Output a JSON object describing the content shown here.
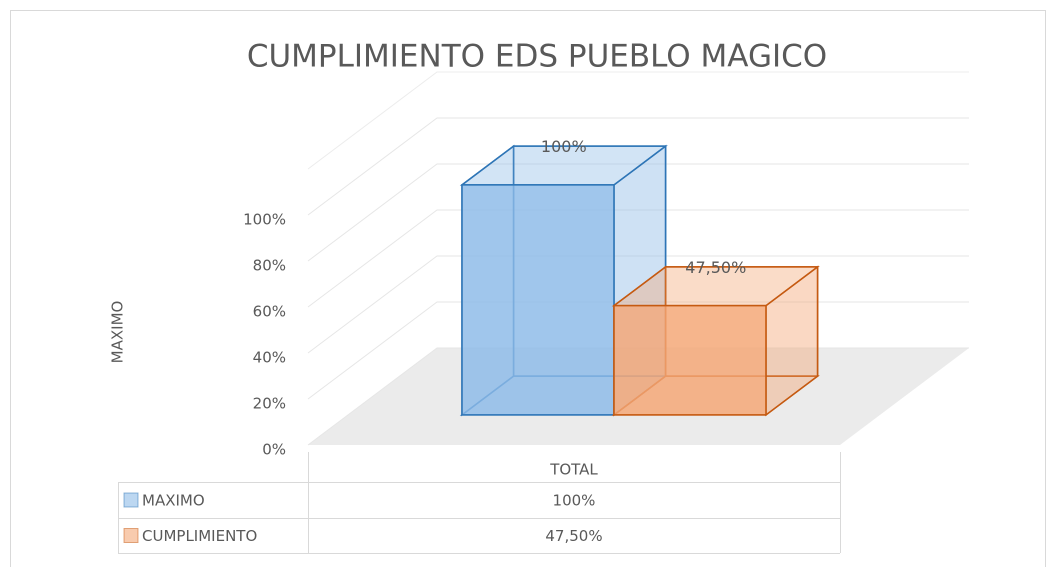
{
  "chart_data": {
    "type": "bar3d",
    "title": "CUMPLIMIENTO EDS PUEBLO MAGICO",
    "y_label": "MAXIMO",
    "categories": [
      "TOTAL"
    ],
    "series": [
      {
        "name": "MAXIMO",
        "color": "#8fbce8",
        "edge": "#2e75b6",
        "values": [
          100
        ],
        "value_labels": [
          "100%"
        ]
      },
      {
        "name": "CUMPLIMIENTO",
        "color": "#f4a878",
        "edge": "#c55a11",
        "values": [
          47.5
        ],
        "value_labels": [
          "47,50%"
        ]
      }
    ],
    "ylim": [
      0,
      100
    ],
    "yticks": [
      {
        "value": 0,
        "label": "0%"
      },
      {
        "value": 20,
        "label": "20%"
      },
      {
        "value": 40,
        "label": "40%"
      },
      {
        "value": 60,
        "label": "60%"
      },
      {
        "value": 80,
        "label": "80%"
      },
      {
        "value": 100,
        "label": "100%"
      }
    ],
    "grid": true,
    "data_table": true
  }
}
